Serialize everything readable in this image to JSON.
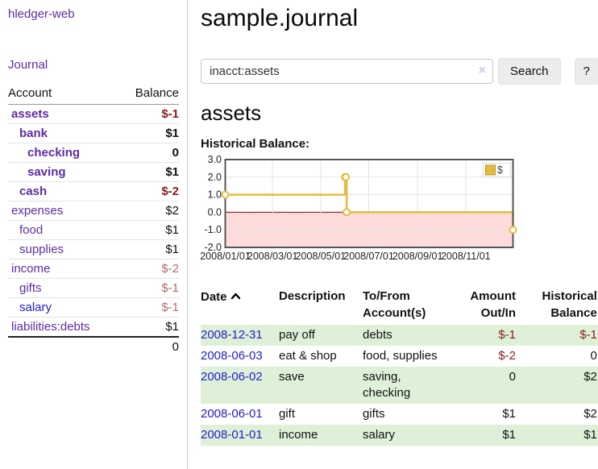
{
  "colors": {
    "accent_purple": "#5e2ca5",
    "link_blue": "#2120d0",
    "negative_strong": "#8b1a1a",
    "negative_muted": "#b56a6a",
    "row_stripe_green": "#dff0d8",
    "chart_gold": "#e3bc3f",
    "chart_gold_border": "#b8962e",
    "chart_negative_fill": "#ffdcdc",
    "chart_zero_line": "#990000",
    "chart_grid": "#e3e3e3",
    "chart_border": "#555555"
  },
  "sidebar": {
    "app_title": "hledger-web",
    "journal_label": "Journal",
    "accounts": {
      "header_account": "Account",
      "header_balance": "Balance",
      "rows": [
        {
          "name": "assets",
          "balance": "$-1",
          "indent": 0,
          "bold": true,
          "link": "purple"
        },
        {
          "name": "bank",
          "balance": "$1",
          "indent": 1,
          "bold": true,
          "link": "purple"
        },
        {
          "name": "checking",
          "balance": "0",
          "indent": 2,
          "bold": true,
          "link": "purple"
        },
        {
          "name": "saving",
          "balance": "$1",
          "indent": 2,
          "bold": true,
          "link": "purple"
        },
        {
          "name": "cash",
          "balance": "$-2",
          "indent": 1,
          "bold": true,
          "link": "purple"
        },
        {
          "name": "expenses",
          "balance": "$2",
          "indent": 0,
          "bold": false,
          "link": "purple"
        },
        {
          "name": "food",
          "balance": "$1",
          "indent": 1,
          "bold": false,
          "link": "purple"
        },
        {
          "name": "supplies",
          "balance": "$1",
          "indent": 1,
          "bold": false,
          "link": "purple"
        },
        {
          "name": "income",
          "balance": "$-2",
          "indent": 0,
          "bold": false,
          "link": "purple"
        },
        {
          "name": "gifts",
          "balance": "$-1",
          "indent": 1,
          "bold": false,
          "link": "purple"
        },
        {
          "name": "salary",
          "balance": "$-1",
          "indent": 1,
          "bold": false,
          "link": "blue"
        },
        {
          "name": "liabilities:debts",
          "balance": "$1",
          "indent": 0,
          "bold": false,
          "link": "purple"
        }
      ],
      "total": "0"
    }
  },
  "main": {
    "title": "sample.journal",
    "search": {
      "value": "inacct:assets",
      "clear_icon": "×",
      "button_label": "Search",
      "help_label": "?"
    },
    "account_heading": "assets",
    "chart_title": "Historical Balance:",
    "register": {
      "headers": {
        "date": "Date",
        "description": "Description",
        "tofrom_line1": "To/From",
        "tofrom_line2": "Account(s)",
        "amount_line1": "Amount",
        "amount_line2": "Out/In",
        "balance_line1": "Historical",
        "balance_line2": "Balance"
      },
      "rows": [
        {
          "date": "2008-12-31",
          "description": "pay off",
          "accounts": "debts",
          "amount": "$-1",
          "balance": "$-1"
        },
        {
          "date": "2008-06-03",
          "description": "eat & shop",
          "accounts": "food, supplies",
          "amount": "$-2",
          "balance": "0"
        },
        {
          "date": "2008-06-02",
          "description": "save",
          "accounts": "saving, checking",
          "amount": "0",
          "balance": "$2"
        },
        {
          "date": "2008-06-01",
          "description": "gift",
          "accounts": "gifts",
          "amount": "$1",
          "balance": "$2"
        },
        {
          "date": "2008-01-01",
          "description": "income",
          "accounts": "salary",
          "amount": "$1",
          "balance": "$1"
        }
      ]
    }
  },
  "chart_data": {
    "type": "line",
    "title": "Historical Balance:",
    "step": true,
    "legend": [
      "$"
    ],
    "legend_position": "top-right",
    "x": [
      "2008-01-01",
      "2008-06-01",
      "2008-06-02",
      "2008-06-03",
      "2008-12-31"
    ],
    "series": [
      {
        "name": "$",
        "values": [
          1,
          2,
          2,
          0,
          -1
        ]
      }
    ],
    "x_range": [
      "2008-01-01",
      "2008-12-31"
    ],
    "x_ticks": [
      "2008/01/01",
      "2008/03/01",
      "2008/05/01",
      "2008/07/01",
      "2008/09/01",
      "2008/11/01"
    ],
    "x_tick_dates": [
      "2008-01-01",
      "2008-03-01",
      "2008-05-01",
      "2008-07-01",
      "2008-09-01",
      "2008-11-01"
    ],
    "y_ticks": [
      3.0,
      2.0,
      1.0,
      0.0,
      -1.0,
      -2.0
    ],
    "ylim": [
      -2.0,
      3.0
    ],
    "grid": true,
    "negative_region_shaded": true
  }
}
